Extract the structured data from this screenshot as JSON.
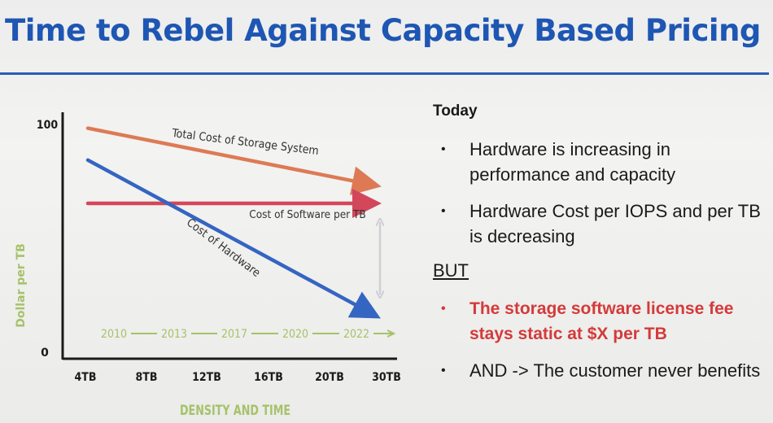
{
  "title": "Time to Rebel Against Capacity Based Pricing",
  "chart_data": {
    "type": "line",
    "categories": [
      "4TB",
      "8TB",
      "12TB",
      "16TB",
      "20TB",
      "30TB"
    ],
    "xlabel": "DENSITY AND TIME",
    "ylabel": "Dollar per TB",
    "ylim": [
      0,
      100
    ],
    "yticks": [
      0,
      100
    ],
    "years": [
      "2010",
      "2013",
      "2017",
      "2020",
      "2022"
    ],
    "series": [
      {
        "name": "Total Cost of Storage System",
        "color": "#dd7a55",
        "x": [
          0,
          5
        ],
        "values": [
          98,
          73
        ]
      },
      {
        "name": "Cost of Software per TB",
        "color": "#d3475a",
        "x": [
          0,
          5
        ],
        "values": [
          65,
          65
        ]
      },
      {
        "name": "Cost of Hardware",
        "color": "#3565c2",
        "x": [
          0,
          5
        ],
        "values": [
          84,
          16
        ]
      }
    ]
  },
  "text": {
    "heading": "Today",
    "bullets_top": [
      "Hardware is increasing in performance and capacity",
      "Hardware Cost per IOPS and per TB is decreasing"
    ],
    "but": "BUT",
    "bullet_red": "The storage software license fee stays static at $X per TB",
    "bullet_last": "AND -> The customer never benefits"
  }
}
